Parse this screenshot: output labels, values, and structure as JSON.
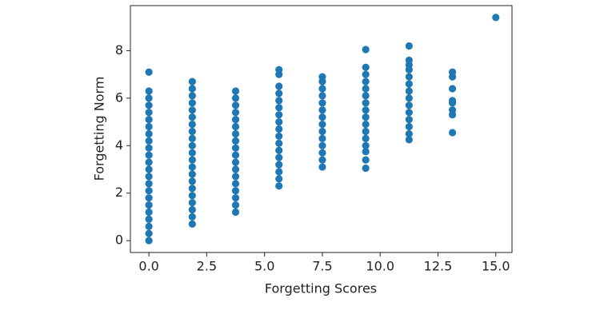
{
  "chart_data": {
    "type": "scatter",
    "x_label": "Forgetting Scores",
    "y_label": "Forgetting Norm",
    "xlim": [
      -0.8,
      15.7
    ],
    "ylim": [
      -0.5,
      9.9
    ],
    "xticks": [
      {
        "value": 0,
        "label": "0.0"
      },
      {
        "value": 2.5,
        "label": "2.5"
      },
      {
        "value": 5,
        "label": "5.0"
      },
      {
        "value": 7.5,
        "label": "7.5"
      },
      {
        "value": 10,
        "label": "10.0"
      },
      {
        "value": 12.5,
        "label": "12.5"
      },
      {
        "value": 15,
        "label": "15.0"
      }
    ],
    "yticks": [
      0,
      2,
      4,
      6,
      8
    ],
    "series": [
      {
        "color": "#1f77b4",
        "x": [
          0,
          0,
          0,
          0,
          0,
          0,
          0,
          0,
          0,
          0,
          0,
          0,
          0,
          0,
          0,
          0,
          0,
          0,
          0,
          0,
          0,
          0,
          0,
          1.875,
          1.875,
          1.875,
          1.875,
          1.875,
          1.875,
          1.875,
          1.875,
          1.875,
          1.875,
          1.875,
          1.875,
          1.875,
          1.875,
          1.875,
          1.875,
          1.875,
          1.875,
          1.875,
          1.875,
          1.875,
          3.75,
          3.75,
          3.75,
          3.75,
          3.75,
          3.75,
          3.75,
          3.75,
          3.75,
          3.75,
          3.75,
          3.75,
          3.75,
          3.75,
          3.75,
          3.75,
          3.75,
          3.75,
          5.625,
          5.625,
          5.625,
          5.625,
          5.625,
          5.625,
          5.625,
          5.625,
          5.625,
          5.625,
          5.625,
          5.625,
          5.625,
          5.625,
          5.625,
          5.625,
          5.625,
          7.5,
          7.5,
          7.5,
          7.5,
          7.5,
          7.5,
          7.5,
          7.5,
          7.5,
          7.5,
          7.5,
          7.5,
          7.5,
          7.5,
          9.375,
          9.375,
          9.375,
          9.375,
          9.375,
          9.375,
          9.375,
          9.375,
          9.375,
          9.375,
          9.375,
          9.375,
          9.375,
          9.375,
          9.375,
          9.375,
          11.25,
          11.25,
          11.25,
          11.25,
          11.25,
          11.25,
          11.25,
          11.25,
          11.25,
          11.25,
          11.25,
          11.25,
          11.25,
          11.25,
          13.125,
          13.125,
          13.125,
          13.125,
          13.125,
          13.125,
          13.125,
          13.125,
          15
        ],
        "values": [
          0,
          0.3,
          0.6,
          0.9,
          1.2,
          1.5,
          1.8,
          2.1,
          2.4,
          2.7,
          3.0,
          3.3,
          3.6,
          3.9,
          4.2,
          4.5,
          4.8,
          5.1,
          5.4,
          5.7,
          6.0,
          6.3,
          7.1,
          0.7,
          1.0,
          1.3,
          1.6,
          1.9,
          2.2,
          2.5,
          2.8,
          3.1,
          3.4,
          3.7,
          4.0,
          4.3,
          4.6,
          4.9,
          5.2,
          5.5,
          5.8,
          6.1,
          6.4,
          6.7,
          1.2,
          1.5,
          1.8,
          2.1,
          2.4,
          2.7,
          3.0,
          3.3,
          3.6,
          3.9,
          4.2,
          4.5,
          4.8,
          5.1,
          5.4,
          5.7,
          6.0,
          6.3,
          2.3,
          2.6,
          2.9,
          3.2,
          3.5,
          3.8,
          4.1,
          4.4,
          4.7,
          5.0,
          5.3,
          5.6,
          5.9,
          6.2,
          6.5,
          7.0,
          7.2,
          3.1,
          3.4,
          3.7,
          4.0,
          4.3,
          4.6,
          4.9,
          5.2,
          5.5,
          5.8,
          6.1,
          6.4,
          6.7,
          6.9,
          3.05,
          3.4,
          3.75,
          4.0,
          4.3,
          4.6,
          4.9,
          5.2,
          5.5,
          5.8,
          6.1,
          6.4,
          6.7,
          7.0,
          7.3,
          8.05,
          4.25,
          4.5,
          4.8,
          5.1,
          5.4,
          5.7,
          6.0,
          6.3,
          6.6,
          6.9,
          7.2,
          7.4,
          7.6,
          8.2,
          4.55,
          5.3,
          5.5,
          5.8,
          5.9,
          6.4,
          6.9,
          7.1,
          9.4
        ]
      }
    ]
  }
}
